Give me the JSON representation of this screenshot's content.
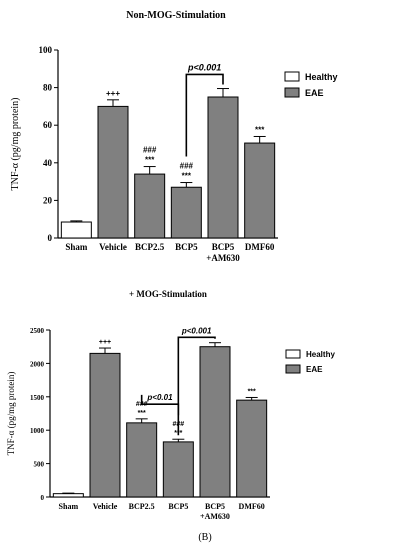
{
  "figure_label": "(B)",
  "chart_data": [
    {
      "type": "bar",
      "title": "Non-MOG-Stimulation",
      "ylabel": "TNF-α (pg/mg protein)",
      "xlabel": "",
      "ylim": [
        0,
        100
      ],
      "yticks": [
        "0",
        "20",
        "40",
        "60",
        "80",
        "100"
      ],
      "ytick_values": [
        0,
        20,
        40,
        60,
        80,
        100
      ],
      "categories": [
        [
          "Sham"
        ],
        [
          "Vehicle"
        ],
        [
          "BCP2.5"
        ],
        [
          "BCP5"
        ],
        [
          "BCP5",
          "+AM630"
        ],
        [
          "DMF60"
        ]
      ],
      "values": [
        8.5,
        70,
        34,
        27,
        75,
        50.5
      ],
      "errors": [
        0.6,
        3.5,
        4,
        2.5,
        4.5,
        3.5
      ],
      "group": [
        "Healthy",
        "EAE",
        "EAE",
        "EAE",
        "EAE",
        "EAE"
      ],
      "annotations": [
        [],
        [
          "+++"
        ],
        [
          "###",
          "***"
        ],
        [
          "###",
          "***"
        ],
        [],
        [
          "***"
        ]
      ],
      "bracket": {
        "from": 3,
        "to": 4,
        "label": "p<0.001",
        "y": 87
      },
      "legend": {
        "position": "top-right",
        "entries": [
          "Healthy",
          "EAE"
        ]
      },
      "colors": {
        "Healthy": "#ffffff",
        "EAE": "#808080"
      },
      "grid": false
    },
    {
      "type": "bar",
      "title": "+ MOG-Stimulation",
      "ylabel": "TNF-α (pg/mg protein)",
      "xlabel": "",
      "ylim": [
        0,
        2500
      ],
      "yticks": [
        "0",
        "500",
        "1000",
        "1500",
        "2000",
        "2500"
      ],
      "ytick_values": [
        0,
        500,
        1000,
        1500,
        2000,
        2500
      ],
      "categories": [
        [
          "Sham"
        ],
        [
          "Vehicle"
        ],
        [
          "BCP2.5"
        ],
        [
          "BCP5"
        ],
        [
          "BCP5",
          "+AM630"
        ],
        [
          "DMF60"
        ]
      ],
      "values": [
        50,
        2150,
        1110,
        825,
        2250,
        1450
      ],
      "errors": [
        8,
        80,
        60,
        40,
        60,
        40
      ],
      "group": [
        "Healthy",
        "EAE",
        "EAE",
        "EAE",
        "EAE",
        "EAE"
      ],
      "annotations": [
        [],
        [
          "+++"
        ],
        [
          "###",
          "***"
        ],
        [
          "###",
          "***"
        ],
        [],
        [
          "***"
        ]
      ],
      "brackets": [
        {
          "from": 2,
          "to": 3,
          "label": "p<0.01",
          "y": 1390
        },
        {
          "from": 3,
          "to": 4,
          "label": "p<0.001",
          "y": 2390
        }
      ],
      "legend": {
        "position": "top-right",
        "entries": [
          "Healthy",
          "EAE"
        ]
      },
      "colors": {
        "Healthy": "#ffffff",
        "EAE": "#808080"
      },
      "grid": false
    }
  ]
}
